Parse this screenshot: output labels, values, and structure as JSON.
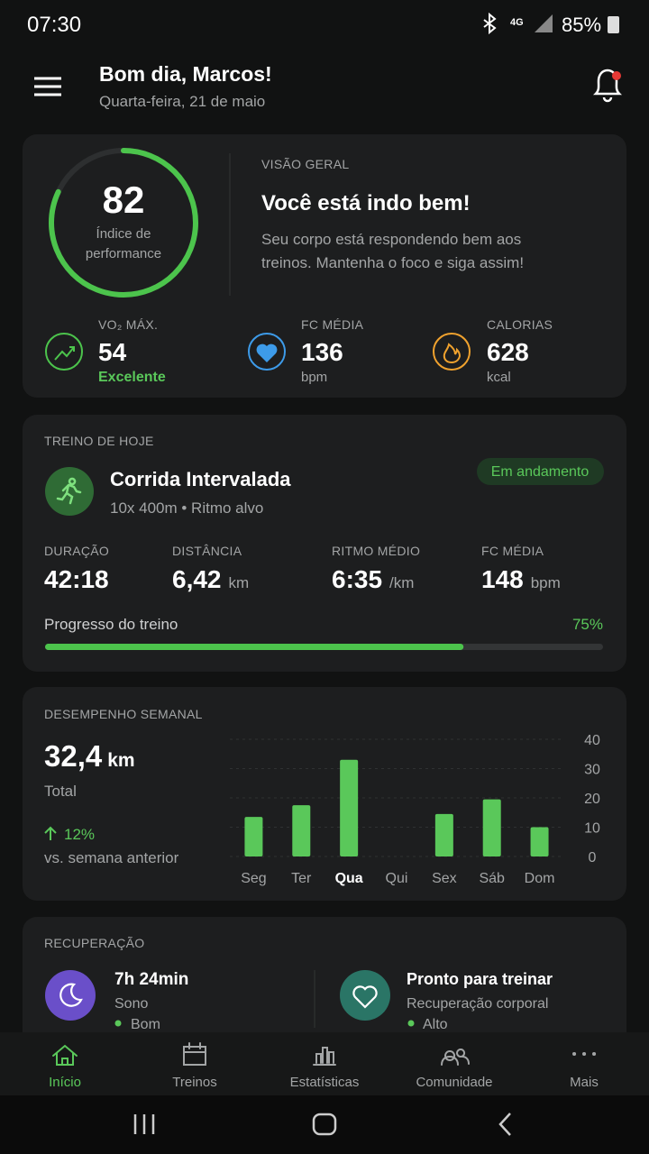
{
  "status_bar": {
    "time": "07:30",
    "network": "4G",
    "battery": "85%"
  },
  "header": {
    "greeting": "Bom dia, Marcos!",
    "date": "Quarta-feira, 21 de maio"
  },
  "overview": {
    "score": 82,
    "score_label": [
      "Índice de",
      "performance"
    ],
    "section": "VISÃO GERAL",
    "headline": "Você está indo bem!",
    "message": [
      "Seu corpo está respondendo bem aos",
      "treinos. Mantenha o foco e siga assim!"
    ],
    "metrics": [
      {
        "label": "VO₂ MÁX.",
        "value": 54,
        "note": "Excelente"
      },
      {
        "label": "FC MÉDIA",
        "value": 136,
        "unit": "bpm"
      },
      {
        "label": "CALORIAS",
        "value": 628,
        "unit": "kcal"
      }
    ]
  },
  "workout": {
    "section": "TREINO DE HOJE",
    "name": "Corrida Intervalada",
    "detail": "10x 400m • Ritmo alvo",
    "status": "Em andamento",
    "stats": [
      {
        "label": "DURAÇÃO",
        "value": "42:18"
      },
      {
        "label": "DISTÂNCIA",
        "value": "6,42",
        "unit": "km"
      },
      {
        "label": "RITMO MÉDIO",
        "value": "6:35",
        "unit": "/km"
      },
      {
        "label": "FC MÉDIA",
        "value": "148",
        "unit": "bpm"
      }
    ],
    "progress_label": "Progresso do treino",
    "progress": {
      "value": 75,
      "label": "75%"
    }
  },
  "weekly": {
    "section": "DESEMPENHO SEMANAL",
    "total": "32,4",
    "unit": "km",
    "total_label": "Total",
    "change": "12%",
    "change_label": "vs. semana anterior",
    "chart": {
      "type": "bar",
      "categories": [
        "Seg",
        "Ter",
        "Qua",
        "Qui",
        "Sex",
        "Sáb",
        "Dom"
      ],
      "values": [
        13.5,
        17.5,
        33,
        0,
        14.5,
        19.5,
        10
      ],
      "color": "#5ac85a",
      "ylim": [
        0,
        40
      ],
      "yticks": [
        0,
        10,
        20,
        30,
        40
      ],
      "grid": true,
      "active": 2
    }
  },
  "recovery": {
    "section": "RECUPERAÇÃO",
    "items": [
      {
        "value": "7h 24min",
        "label": "Sono",
        "status": "Bom"
      },
      {
        "value": "Pronto para treinar",
        "label": "Recuperação corporal",
        "status": "Alto"
      }
    ]
  },
  "nav": {
    "items": [
      "Início",
      "Treinos",
      "Estatísticas",
      "Comunidade",
      "Mais"
    ],
    "active": 0
  }
}
